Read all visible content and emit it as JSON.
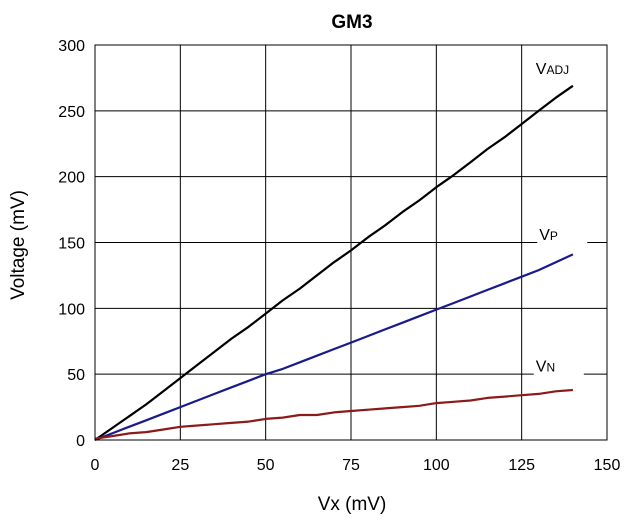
{
  "chart_data": {
    "type": "line",
    "title": "GM3",
    "xlabel": "Vx (mV)",
    "ylabel": "Voltage (mV)",
    "xlim": [
      0,
      150
    ],
    "ylim": [
      0,
      300
    ],
    "xticks": [
      0,
      25,
      50,
      75,
      100,
      125,
      150
    ],
    "yticks": [
      0,
      50,
      100,
      150,
      200,
      250,
      300
    ],
    "grid": true,
    "series": [
      {
        "name": "VADJ",
        "label_main": "V",
        "label_sub": "ADJ",
        "color": "#000000",
        "x": [
          0,
          5,
          10,
          15,
          20,
          25,
          30,
          35,
          40,
          45,
          50,
          55,
          60,
          65,
          70,
          75,
          80,
          85,
          90,
          95,
          100,
          105,
          110,
          115,
          120,
          125,
          130,
          135,
          140
        ],
        "y": [
          0,
          9,
          18,
          27,
          37,
          47,
          57,
          67,
          77,
          86,
          96,
          106,
          115,
          125,
          135,
          144,
          154,
          163,
          173,
          182,
          192,
          201,
          211,
          221,
          230,
          240,
          250,
          260,
          269
        ]
      },
      {
        "name": "VP",
        "label_main": "V",
        "label_sub": "P",
        "color": "#1a1a8c",
        "x": [
          0,
          5,
          10,
          15,
          20,
          25,
          30,
          35,
          40,
          45,
          50,
          55,
          60,
          65,
          70,
          75,
          80,
          85,
          90,
          95,
          100,
          105,
          110,
          115,
          120,
          125,
          130,
          135,
          140
        ],
        "y": [
          0,
          5,
          10,
          15,
          20,
          25,
          30,
          35,
          40,
          45,
          50,
          54,
          59,
          64,
          69,
          74,
          79,
          84,
          89,
          94,
          99,
          104,
          109,
          114,
          119,
          124,
          129,
          135,
          141
        ]
      },
      {
        "name": "VN",
        "label_main": "V",
        "label_sub": "N",
        "color": "#8b1a1a",
        "x": [
          0,
          5,
          10,
          15,
          20,
          25,
          30,
          35,
          40,
          45,
          50,
          55,
          60,
          65,
          70,
          75,
          80,
          85,
          90,
          95,
          100,
          105,
          110,
          115,
          120,
          125,
          130,
          135,
          140
        ],
        "y": [
          1,
          3,
          5,
          6,
          8,
          10,
          11,
          12,
          13,
          14,
          16,
          17,
          19,
          19,
          21,
          22,
          23,
          24,
          25,
          26,
          28,
          29,
          30,
          32,
          33,
          34,
          35,
          37,
          38
        ]
      }
    ]
  }
}
